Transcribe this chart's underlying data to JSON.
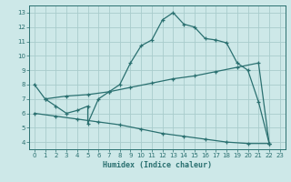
{
  "xlabel": "Humidex (Indice chaleur)",
  "bg_color": "#cde8e8",
  "line_color": "#2a7070",
  "xlim": [
    -0.5,
    23.5
  ],
  "ylim": [
    3.5,
    13.5
  ],
  "xticks": [
    0,
    1,
    2,
    3,
    4,
    5,
    6,
    7,
    8,
    9,
    10,
    11,
    12,
    13,
    14,
    15,
    16,
    17,
    18,
    19,
    20,
    21,
    22,
    23
  ],
  "yticks": [
    4,
    5,
    6,
    7,
    8,
    9,
    10,
    11,
    12,
    13
  ],
  "line1_x": [
    0,
    1,
    2,
    3,
    4,
    5,
    5,
    6,
    7,
    8,
    9,
    10,
    11,
    12,
    13,
    14,
    15,
    16,
    17,
    18,
    19,
    20,
    21,
    22
  ],
  "line1_y": [
    8.0,
    7.0,
    6.5,
    6.0,
    6.2,
    6.5,
    5.3,
    7.0,
    7.5,
    8.0,
    9.5,
    10.7,
    11.1,
    12.5,
    13.0,
    12.2,
    12.0,
    11.2,
    11.1,
    10.9,
    9.5,
    9.0,
    6.8,
    3.9
  ],
  "line2_x": [
    1,
    3,
    5,
    7,
    9,
    11,
    13,
    15,
    17,
    19,
    21,
    22
  ],
  "line2_y": [
    7.0,
    7.2,
    7.3,
    7.5,
    7.8,
    8.1,
    8.4,
    8.6,
    8.9,
    9.2,
    9.5,
    3.9
  ],
  "line3_x": [
    0,
    2,
    4,
    6,
    8,
    10,
    12,
    14,
    16,
    18,
    20,
    22
  ],
  "line3_y": [
    6.0,
    5.8,
    5.6,
    5.4,
    5.2,
    4.9,
    4.6,
    4.4,
    4.2,
    4.0,
    3.9,
    3.9
  ]
}
